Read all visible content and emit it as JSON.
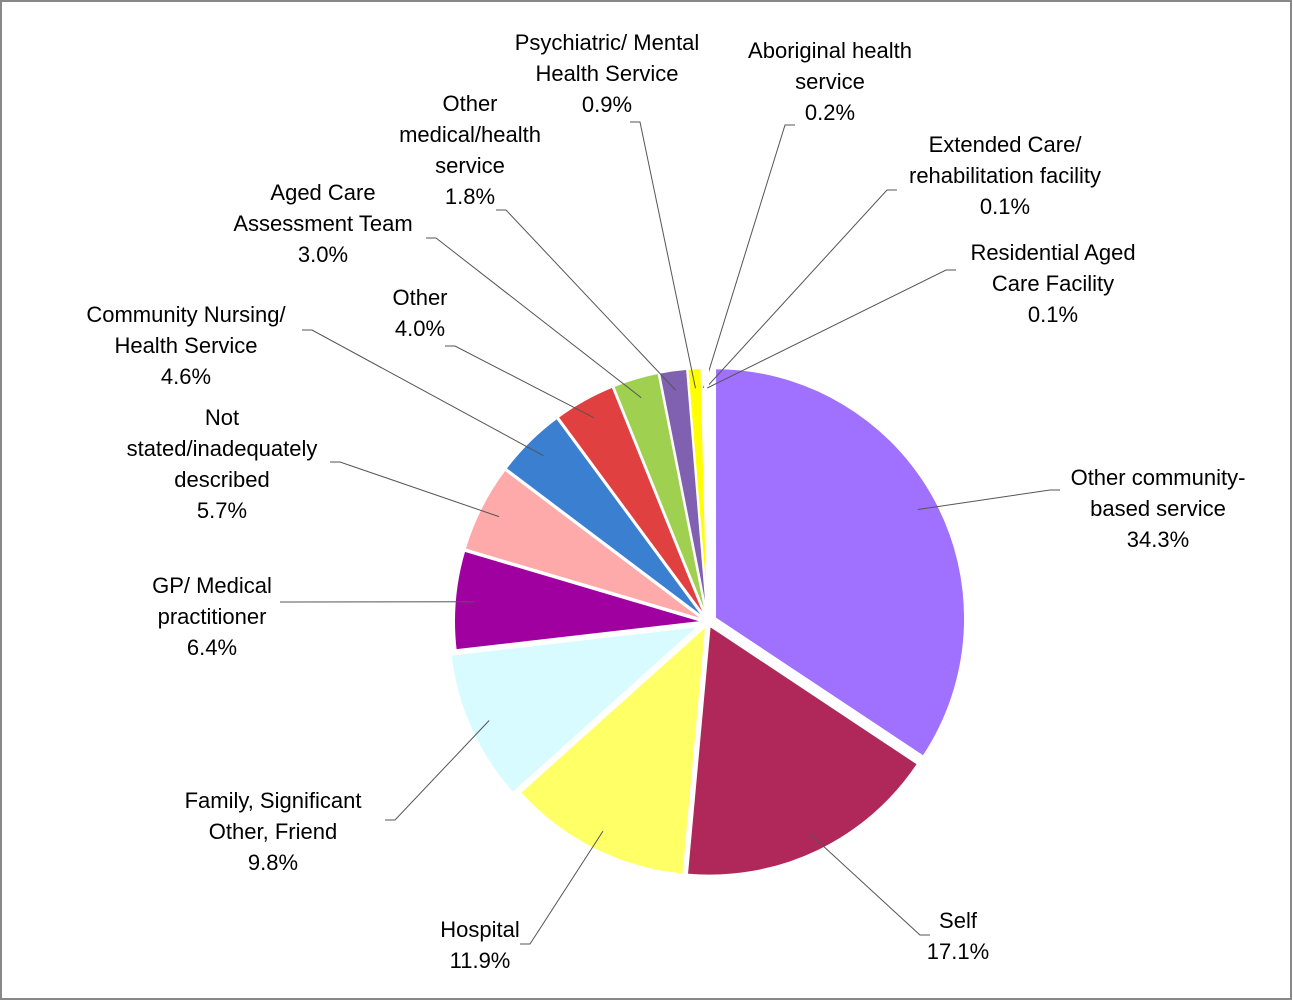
{
  "chart_data": {
    "type": "pie",
    "categories": [
      "Other community-\nbased service",
      "Self",
      "Hospital",
      "Family, Significant\nOther, Friend",
      "GP/ Medical\npractitioner",
      "Not\nstated/inadequately\ndescribed",
      "Community Nursing/\nHealth Service",
      "Other",
      "Aged Care\nAssessment Team",
      "Other\nmedical/health\nservice",
      "Psychiatric/ Mental\nHealth Service",
      "Aboriginal health\nservice",
      "Extended Care/\nrehabilitation facility",
      "Residential Aged\nCare Facility"
    ],
    "values": [
      34.3,
      17.1,
      11.9,
      9.8,
      6.4,
      5.7,
      4.6,
      4.0,
      3.0,
      1.8,
      0.9,
      0.2,
      0.1,
      0.1
    ],
    "value_labels": [
      "34.3%",
      "17.1%",
      "11.9%",
      "9.8%",
      "6.4%",
      "5.7%",
      "4.6%",
      "4.0%",
      "3.0%",
      "1.8%",
      "0.9%",
      "0.2%",
      "0.1%",
      "0.1%"
    ],
    "colors": [
      "#a070ff",
      "#b0285a",
      "#ffff66",
      "#d8fbff",
      "#a000a0",
      "#ffaaaa",
      "#3a7fd0",
      "#e04040",
      "#a0d050",
      "#8060b0",
      "#ffff00",
      "#ffffff",
      "#f4f4f4",
      "#ffffff"
    ]
  }
}
